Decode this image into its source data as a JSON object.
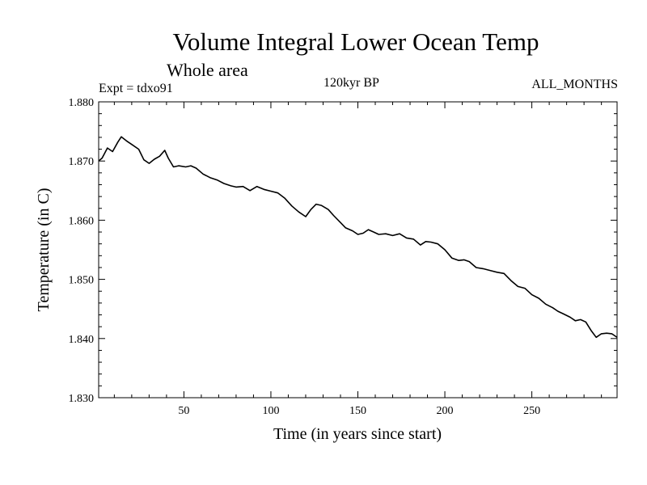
{
  "header": {
    "title": "Volume Integral Lower Ocean Temp",
    "subtitle": "Whole area",
    "expt": "Expt = tdxo91",
    "period": "120kyr BP",
    "months": "ALL_MONTHS"
  },
  "chart_data": {
    "type": "line",
    "title": "Volume Integral Lower Ocean Temp",
    "subtitle": "Whole area",
    "xlabel": "Time (in years since start)",
    "ylabel": "Temperature (in C)",
    "xlim": [
      1,
      299
    ],
    "ylim": [
      1.83,
      1.88
    ],
    "x_ticks": [
      50,
      100,
      150,
      200,
      250
    ],
    "y_ticks": [
      1.83,
      1.84,
      1.85,
      1.86,
      1.87,
      1.88
    ],
    "y_tick_labels": [
      "1.830",
      "1.840",
      "1.850",
      "1.860",
      "1.870",
      "1.880"
    ],
    "grid": false,
    "series": [
      {
        "name": "Volume integral lower ocean temperature",
        "x": [
          1,
          3,
          6,
          9,
          12,
          14,
          17,
          20,
          24,
          27,
          30,
          33,
          36,
          39,
          41,
          44,
          47,
          51,
          54,
          57,
          61,
          65,
          69,
          73,
          77,
          80,
          84,
          88,
          92,
          96,
          100,
          104,
          108,
          112,
          116,
          120,
          123,
          126,
          129,
          133,
          136,
          140,
          143,
          147,
          150,
          153,
          156,
          159,
          162,
          166,
          170,
          174,
          178,
          182,
          186,
          189,
          192,
          196,
          200,
          204,
          208,
          211,
          214,
          218,
          222,
          226,
          230,
          234,
          238,
          242,
          246,
          250,
          254,
          258,
          262,
          265,
          268,
          272,
          275,
          278,
          281,
          284,
          287,
          290,
          293,
          296,
          299
        ],
        "y": [
          1.87,
          1.8705,
          1.8722,
          1.8716,
          1.8732,
          1.8741,
          1.8734,
          1.8728,
          1.872,
          1.8702,
          1.8696,
          1.8703,
          1.8708,
          1.8718,
          1.8705,
          1.869,
          1.8692,
          1.869,
          1.8692,
          1.8688,
          1.8678,
          1.8672,
          1.8668,
          1.8662,
          1.8658,
          1.8656,
          1.8657,
          1.865,
          1.8657,
          1.8652,
          1.8649,
          1.8646,
          1.8637,
          1.8624,
          1.8614,
          1.8606,
          1.8618,
          1.8627,
          1.8625,
          1.8618,
          1.8608,
          1.8596,
          1.8587,
          1.8582,
          1.8576,
          1.8578,
          1.8584,
          1.858,
          1.8576,
          1.8577,
          1.8574,
          1.8577,
          1.857,
          1.8568,
          1.8558,
          1.8564,
          1.8563,
          1.856,
          1.855,
          1.8536,
          1.8532,
          1.8533,
          1.853,
          1.852,
          1.8518,
          1.8515,
          1.8512,
          1.851,
          1.8498,
          1.8488,
          1.8485,
          1.8474,
          1.8468,
          1.8458,
          1.8452,
          1.8446,
          1.8442,
          1.8436,
          1.843,
          1.8432,
          1.8428,
          1.8414,
          1.8402,
          1.8408,
          1.8409,
          1.8408,
          1.8402
        ]
      }
    ]
  }
}
